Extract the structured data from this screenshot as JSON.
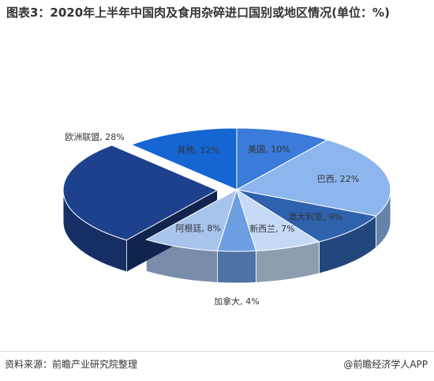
{
  "chart_data": {
    "type": "pie",
    "title": "图表3：2020年上半年中国肉及食用杂碎进口国别或地区情况(单位：%)",
    "values": [
      10,
      22,
      9,
      7,
      4,
      8,
      28,
      12
    ],
    "value_labels": [
      "美国, 10%",
      "巴西, 22%",
      "澳大利亚, 9%",
      "新西兰, 7%",
      "加拿大, 4%",
      "阿根廷, 8%",
      "欧洲联盟, 28%",
      "其他, 12%"
    ],
    "colors": [
      "#3b7bd9",
      "#8db6ee",
      "#2f62ad",
      "#c6daf6",
      "#6d9ee2",
      "#a8c3ec",
      "#1d418c",
      "#1565d3"
    ],
    "explode_index": 6,
    "source": "资料来源：前瞻产业研究院整理",
    "brand": "@前瞻经济学人APP"
  }
}
